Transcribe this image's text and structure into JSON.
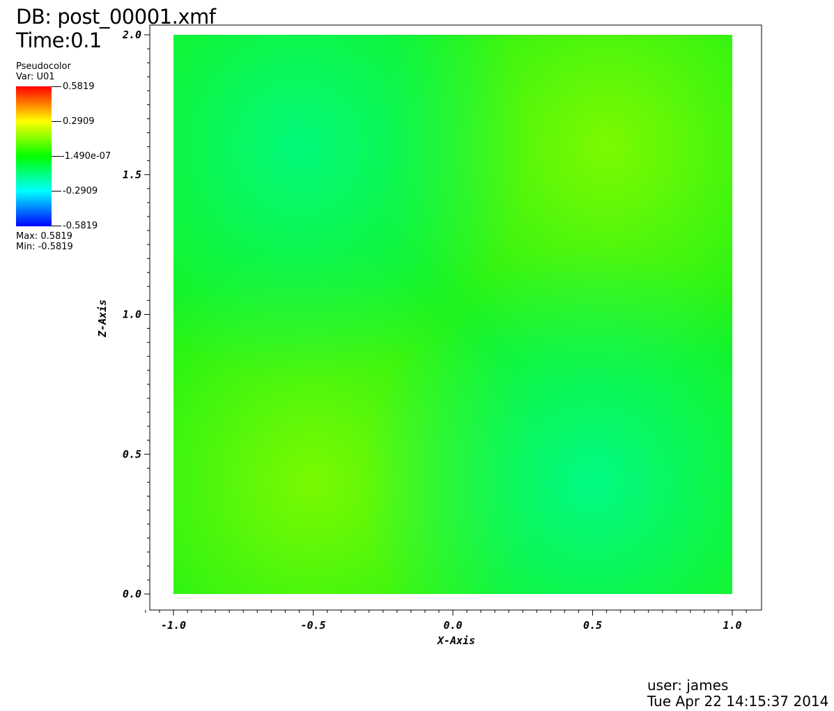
{
  "header": {
    "db": "DB: post_00001.xmf",
    "time": "Time:0.1"
  },
  "legend": {
    "plot_type": "Pseudocolor",
    "variable": "Var: U01",
    "ticks": [
      "0.5819",
      "0.2909",
      "-1.490e-07",
      "-0.2909",
      "-0.5819"
    ],
    "max_label": "Max:  0.5819",
    "min_label": "Min: -0.5819",
    "colormap": [
      "#ff0000",
      "#ffff00",
      "#00ff00",
      "#00ffff",
      "#0000ff"
    ]
  },
  "footer": {
    "user": "user: james",
    "timestamp": "Tue Apr 22 14:15:37 2014"
  },
  "chart_data": {
    "type": "heatmap",
    "title": "",
    "xlabel": "X-Axis",
    "ylabel": "Z-Axis",
    "xlim": [
      -1.0,
      1.0
    ],
    "ylim": [
      0.0,
      2.0
    ],
    "x_ticks": [
      "-1.0",
      "-0.5",
      "0.0",
      "0.5",
      "1.0"
    ],
    "y_ticks": [
      "0.0",
      "0.5",
      "1.0",
      "1.5",
      "2.0"
    ],
    "colorbar_range": [
      -0.5819,
      0.5819
    ],
    "field_features": [
      {
        "label": "max-lobe",
        "x": -0.5,
        "z": 0.4,
        "value": 0.12
      },
      {
        "label": "max-lobe",
        "x": 0.55,
        "z": 1.6,
        "value": 0.12
      },
      {
        "label": "min-lobe",
        "x": -0.55,
        "z": 1.6,
        "value": -0.12
      },
      {
        "label": "min-lobe",
        "x": 0.5,
        "z": 0.4,
        "value": -0.12
      }
    ],
    "grid": false
  }
}
